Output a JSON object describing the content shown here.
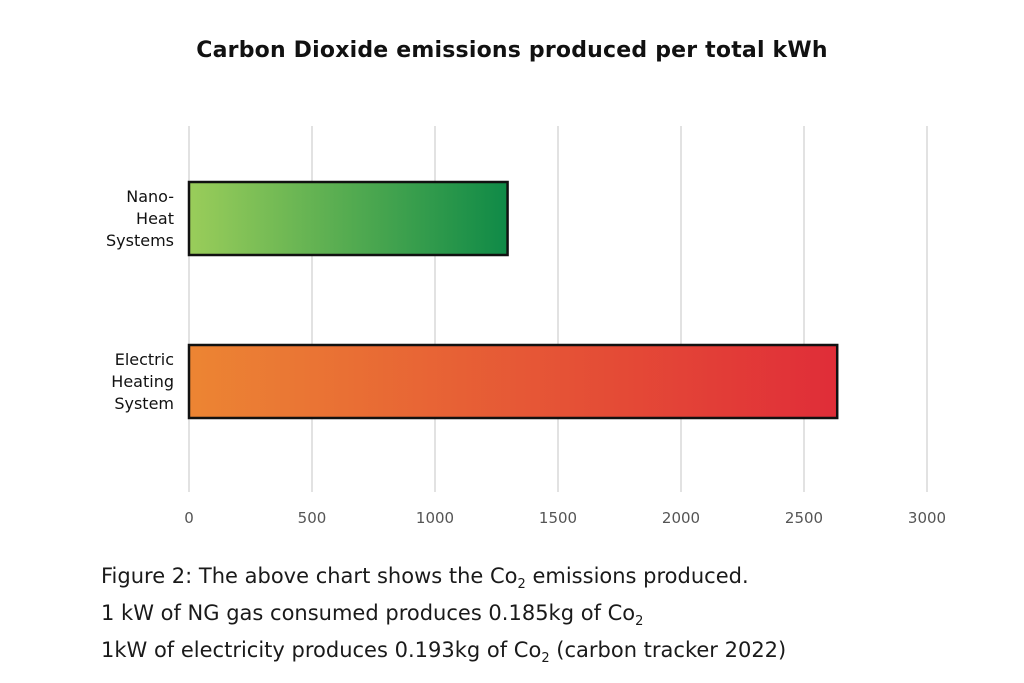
{
  "chart_data": {
    "type": "bar",
    "orientation": "horizontal",
    "title": "Carbon Dioxide emissions produced per total kWh",
    "categories": [
      "Nano-Heat Systems",
      "Electric Heating System"
    ],
    "category_lines": [
      [
        "Nano-",
        "Heat",
        "Systems"
      ],
      [
        "Electric",
        "Heating",
        "System"
      ]
    ],
    "values": [
      1295,
      2635
    ],
    "xlim": [
      0,
      3000
    ],
    "xticks": [
      "0",
      "500",
      "1000",
      "1500",
      "2000",
      "2500",
      "3000"
    ],
    "grid": "vertical",
    "bar_colors": [
      {
        "start": "#9acd5a",
        "end": "#0f8a47"
      },
      {
        "start": "#ec8533",
        "end": "#e02d38"
      }
    ]
  },
  "caption": {
    "line1_prefix": "Figure 2: The above chart shows the Co",
    "line1_sub": "2",
    "line1_suffix": " emissions produced.",
    "line2_prefix": "1 kW of NG gas consumed produces 0.185kg of Co",
    "line2_sub": "2",
    "line3_prefix": "1kW of electricity produces 0.193kg of Co",
    "line3_sub": "2",
    "line3_suffix": " (carbon tracker 2022)"
  }
}
